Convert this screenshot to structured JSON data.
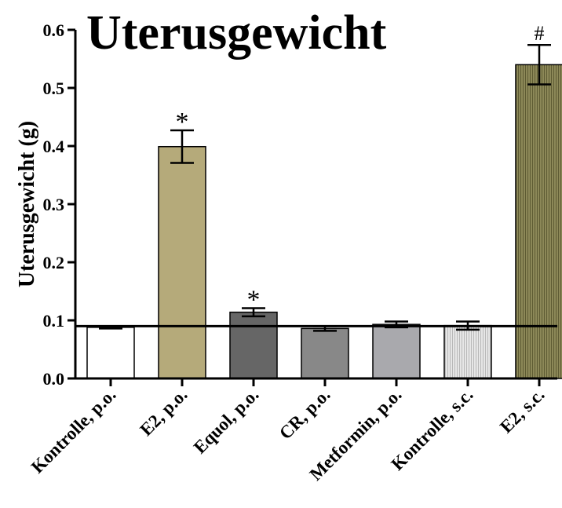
{
  "chart_data": {
    "type": "bar",
    "title": "Uterusgewicht",
    "xlabel": "",
    "ylabel": "Uterusgewicht (g)",
    "ylim": [
      0,
      0.6
    ],
    "yticks": [
      "0.0",
      "0.1",
      "0.2",
      "0.3",
      "0.4",
      "0.5",
      "0.6"
    ],
    "reference_line": 0.09,
    "grid": false,
    "categories": [
      "Kontrolle, p.o.",
      "E2, p.o.",
      "Equol, p.o.",
      "CR, p.o.",
      "Metformin, p.o.",
      "Kontrolle, s.c.",
      "E2, s.c."
    ],
    "values": [
      0.088,
      0.399,
      0.114,
      0.086,
      0.093,
      0.091,
      0.54
    ],
    "errors": [
      0.002,
      0.028,
      0.007,
      0.004,
      0.005,
      0.007,
      0.034
    ],
    "annotations": [
      "",
      "*",
      "*",
      "",
      "",
      "",
      "#"
    ],
    "colors": [
      "#ffffff",
      "#b5aa7a",
      "#666666",
      "#888888",
      "#a9a9ad",
      "#d8d8d8",
      "#827f50"
    ],
    "patterns": [
      "none",
      "none",
      "none",
      "none",
      "none",
      "vertical-lines-light",
      "vertical-lines-dark"
    ]
  }
}
